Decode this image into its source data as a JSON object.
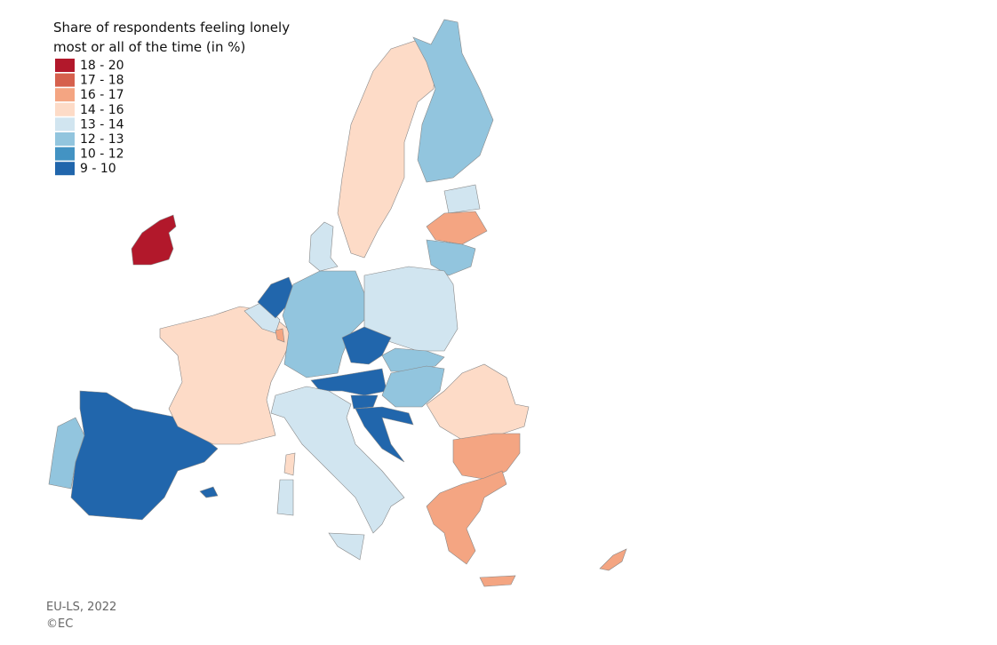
{
  "title": [
    "Share of respondents feeling lonely",
    "most or all of the time (in %)"
  ],
  "legend": {
    "items": [
      {
        "label": "18 - 20",
        "color": "#b2182b"
      },
      {
        "label": "17 - 18",
        "color": "#d6604d"
      },
      {
        "label": "16 - 17",
        "color": "#f4a582"
      },
      {
        "label": "14 - 16",
        "color": "#fddbc7"
      },
      {
        "label": "13 - 14",
        "color": "#d1e5f0"
      },
      {
        "label": "12 - 13",
        "color": "#92c5de"
      },
      {
        "label": "10 - 12",
        "color": "#4393c3"
      },
      {
        "label": "9 - 10",
        "color": "#2166ac"
      }
    ]
  },
  "footer": [
    "EU-LS, 2022",
    "©EC"
  ]
}
